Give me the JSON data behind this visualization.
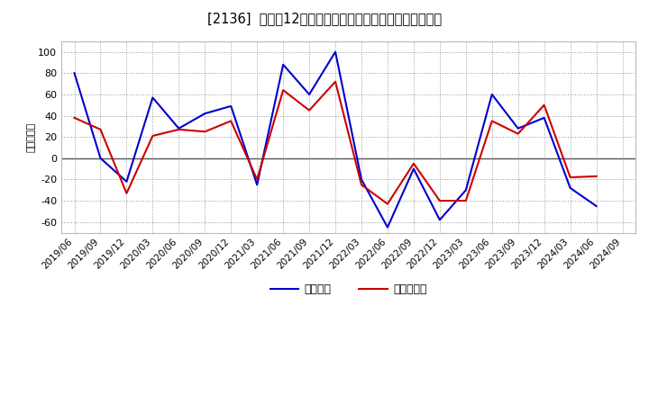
{
  "title": "[ℶ］　利益の12か月移動合計の対前年同期増減額の推移",
  "title_str": "[2136]  利益の12か月移動合計の対前年同期増減額の推移",
  "ylabel": "（百万円）",
  "background_color": "#ffffff",
  "plot_bg_color": "#ffffff",
  "grid_color": "#999999",
  "ylim": [
    -70,
    110
  ],
  "yticks": [
    -60,
    -40,
    -20,
    0,
    20,
    40,
    60,
    80,
    100
  ],
  "x_labels": [
    "2019/06",
    "2019/09",
    "2019/12",
    "2020/03",
    "2020/06",
    "2020/09",
    "2020/12",
    "2021/03",
    "2021/06",
    "2021/09",
    "2021/12",
    "2022/03",
    "2022/06",
    "2022/09",
    "2022/12",
    "2023/03",
    "2023/06",
    "2023/09",
    "2023/12",
    "2024/03",
    "2024/06",
    "2024/09"
  ],
  "keijo_rieki": [
    80,
    0,
    -22,
    57,
    28,
    42,
    49,
    -25,
    88,
    60,
    100,
    -20,
    -65,
    -10,
    -58,
    -30,
    60,
    28,
    38,
    -28,
    -45,
    null
  ],
  "touki_junrieki": [
    38,
    27,
    -33,
    21,
    27,
    25,
    35,
    -20,
    64,
    45,
    72,
    -25,
    -43,
    -5,
    -40,
    -40,
    35,
    23,
    50,
    -18,
    -17,
    null
  ],
  "line_blue": "#0000cc",
  "line_red": "#cc0000",
  "legend_blue": "経常利益",
  "legend_red": "当期純利益"
}
